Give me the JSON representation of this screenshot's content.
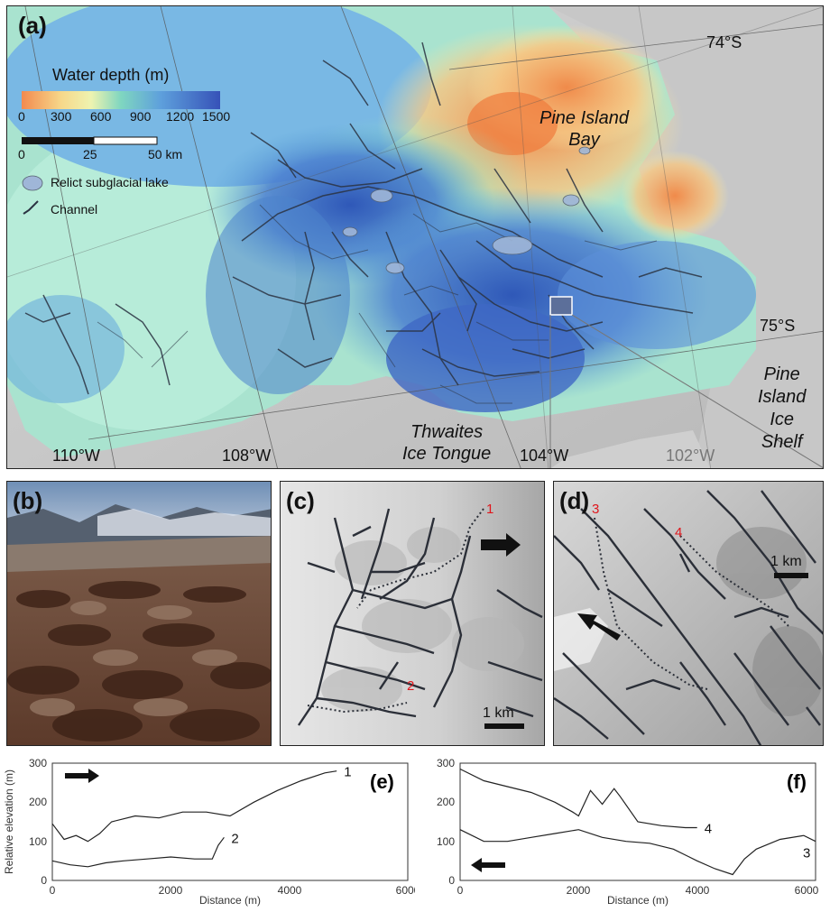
{
  "panel_a": {
    "label": "(a)",
    "legend_title": "Water depth (m)",
    "colorbar_ticks": [
      "0",
      "300",
      "600",
      "900",
      "1200",
      "1500"
    ],
    "scalebar_ticks": [
      "0",
      "25",
      "50 km"
    ],
    "lake_label": "Relict subglacial lake",
    "channel_label": "Channel",
    "places": {
      "pine_island_bay_1": "Pine Island",
      "pine_island_bay_2": "Bay",
      "thwaites_1": "Thwaites",
      "thwaites_2": "Ice Tongue",
      "shelf_1": "Pine",
      "shelf_2": "Island",
      "shelf_3": "Ice",
      "shelf_4": "Shelf"
    },
    "lat_labels": [
      "74°S",
      "75°S"
    ],
    "lon_labels": [
      "110°W",
      "108°W",
      "104°W",
      "102°W"
    ],
    "colors": {
      "shallow": "#f2a15a",
      "mid": "#f6eea8",
      "teal": "#7fd6c8",
      "deep": "#3d66c6",
      "channel": "#2b3342"
    }
  },
  "panel_b": {
    "label": "(b)"
  },
  "panel_c": {
    "label": "(c)",
    "point_labels": [
      "1",
      "2"
    ],
    "scale": "1 km"
  },
  "panel_d": {
    "label": "(d)",
    "point_labels": [
      "3",
      "4"
    ],
    "scale": "1 km"
  },
  "chart_data": [
    {
      "type": "line",
      "panel_label": "(e)",
      "xlabel": "Distance (m)",
      "ylabel": "Relative elevation (m)",
      "xlim": [
        0,
        6000
      ],
      "ylim": [
        0,
        300
      ],
      "xticks": [
        "0",
        "2000",
        "4000",
        "6000"
      ],
      "yticks": [
        "0",
        "100",
        "200",
        "300"
      ],
      "series": [
        {
          "name": "1",
          "x": [
            0,
            200,
            400,
            600,
            800,
            1000,
            1400,
            1800,
            2200,
            2600,
            3000,
            3400,
            3800,
            4200,
            4600,
            4800
          ],
          "values": [
            145,
            105,
            115,
            100,
            120,
            150,
            165,
            160,
            175,
            175,
            165,
            200,
            230,
            255,
            275,
            280
          ]
        },
        {
          "name": "2",
          "x": [
            0,
            300,
            600,
            900,
            1200,
            1600,
            2000,
            2400,
            2700,
            2800,
            2900
          ],
          "values": [
            50,
            40,
            35,
            45,
            50,
            55,
            60,
            55,
            55,
            90,
            110
          ]
        }
      ]
    },
    {
      "type": "line",
      "panel_label": "(f)",
      "xlabel": "Distance (m)",
      "xlim": [
        0,
        6000
      ],
      "ylim": [
        0,
        300
      ],
      "xticks": [
        "0",
        "2000",
        "4000",
        "6000"
      ],
      "yticks": [
        "0",
        "100",
        "200",
        "300"
      ],
      "series": [
        {
          "name": "4",
          "x": [
            0,
            400,
            800,
            1200,
            1600,
            1900,
            2000,
            2200,
            2400,
            2600,
            2700,
            3000,
            3400,
            3800,
            4000
          ],
          "values": [
            285,
            255,
            240,
            225,
            200,
            175,
            165,
            230,
            195,
            235,
            215,
            150,
            140,
            135,
            135
          ]
        },
        {
          "name": "3",
          "x": [
            0,
            400,
            800,
            1200,
            1600,
            2000,
            2400,
            2800,
            3200,
            3600,
            4000,
            4300,
            4600,
            4800,
            5000,
            5400,
            5800,
            6000
          ],
          "values": [
            130,
            100,
            100,
            110,
            120,
            130,
            110,
            100,
            95,
            80,
            50,
            30,
            15,
            55,
            80,
            105,
            115,
            100
          ]
        }
      ]
    }
  ]
}
